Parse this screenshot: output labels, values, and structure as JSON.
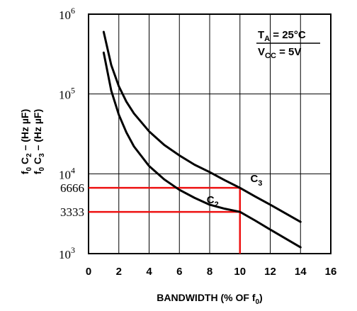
{
  "chart_data": {
    "type": "line",
    "xlabel": {
      "main": "BANDWIDTH (% OF f",
      "sub": "0",
      "end": ")"
    },
    "ylabel": {
      "line1": {
        "a": "f",
        "a_sub": "0",
        "b": " C",
        "b_sub": "2",
        "c": " – (Hz µF)"
      },
      "line2": {
        "a": "f",
        "a_sub": "0",
        "b": " C",
        "b_sub": "3",
        "c": " – (Hz µF)"
      }
    },
    "xlim": [
      0,
      16
    ],
    "ylim": [
      1000,
      1000000
    ],
    "yscale": "log",
    "grid": true,
    "x_ticks": [
      "0",
      "2",
      "4",
      "6",
      "8",
      "10",
      "12",
      "14",
      "16"
    ],
    "y_ticks": [
      {
        "value": 1000,
        "base": "10",
        "exp": "3"
      },
      {
        "value": 10000,
        "base": "10",
        "exp": "4"
      },
      {
        "value": 100000,
        "base": "10",
        "exp": "5"
      },
      {
        "value": 1000000,
        "base": "10",
        "exp": "6"
      }
    ],
    "series": [
      {
        "name": "C3",
        "label": {
          "main": "C",
          "sub": "3"
        },
        "x": [
          1,
          1.5,
          2,
          2.5,
          3,
          4,
          5,
          6,
          7,
          8,
          9,
          10,
          11,
          12,
          13,
          14
        ],
        "y": [
          600000,
          230000,
          125000,
          80000,
          57000,
          34000,
          23000,
          17000,
          13000,
          10500,
          8300,
          6666,
          5200,
          4100,
          3200,
          2500
        ]
      },
      {
        "name": "C2",
        "label": {
          "main": "C",
          "sub": "2"
        },
        "x": [
          1,
          1.5,
          2,
          2.5,
          3,
          4,
          5,
          6,
          7,
          8,
          9,
          10,
          11,
          12,
          13,
          14
        ],
        "y": [
          330000,
          110000,
          55000,
          33000,
          22000,
          12500,
          8500,
          6300,
          5000,
          4100,
          3650,
          3333,
          2600,
          2000,
          1550,
          1200
        ]
      }
    ],
    "reference_lines": {
      "color": "#ee1111",
      "x": 10,
      "y_values": [
        6666,
        3333
      ],
      "y_labels": [
        "6666",
        "3333"
      ]
    },
    "annotation": {
      "line1": {
        "a": "T",
        "a_sub": "A",
        "b": " = 25°C"
      },
      "line2": {
        "a": "V",
        "a_sub": "CC",
        "b": " = 5V"
      }
    }
  }
}
